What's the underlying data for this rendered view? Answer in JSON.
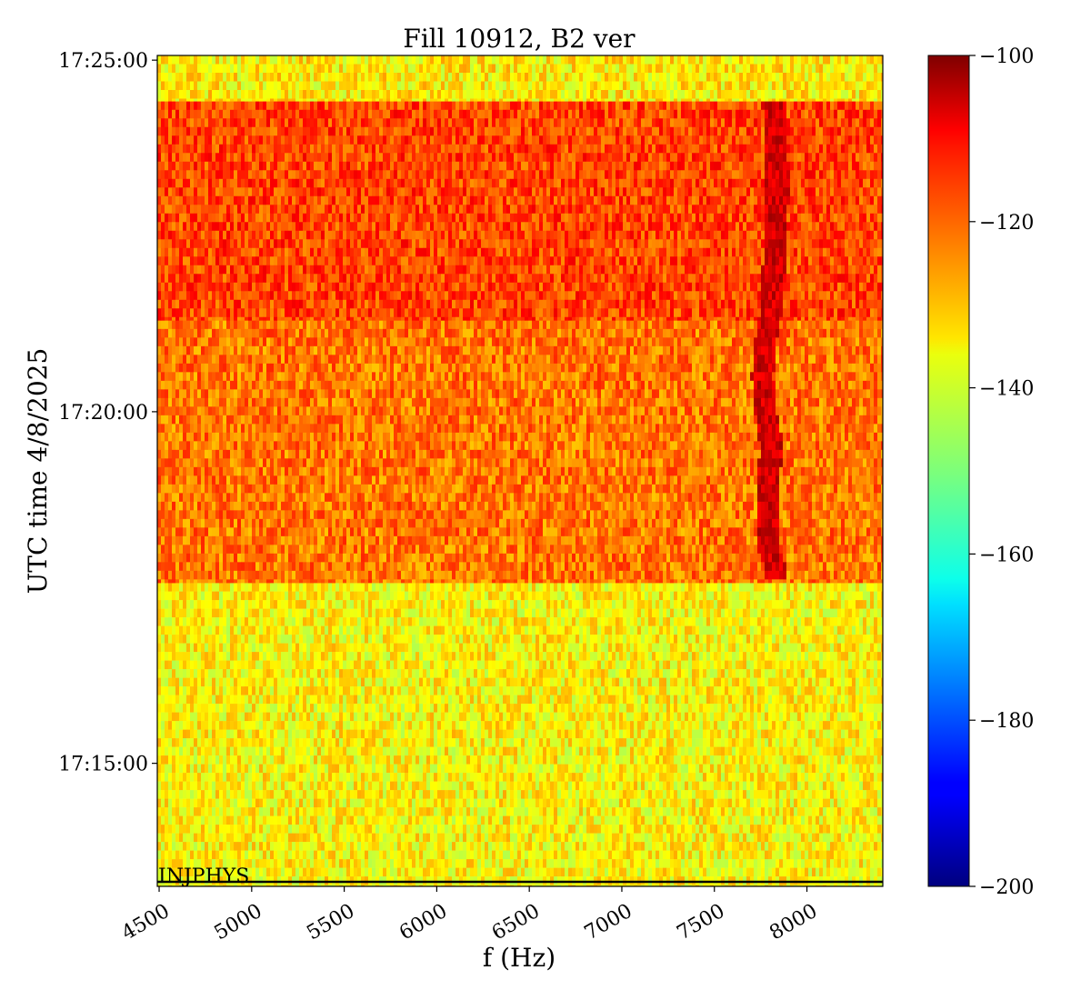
{
  "chart_data": {
    "type": "heatmap",
    "title": "Fill 10912, B2 ver",
    "xlabel": "f (Hz)",
    "ylabel": "UTC time 4/8/2025",
    "xlim": [
      4490,
      8410
    ],
    "x_ticks": [
      4500,
      5000,
      5500,
      6000,
      6500,
      7000,
      7500,
      8000
    ],
    "x_tick_labels": [
      "4500",
      "5000",
      "5500",
      "6000",
      "6500",
      "7000",
      "7500",
      "8000"
    ],
    "ylim_seconds_after_1700": [
      795,
      1504
    ],
    "y_ticks_seconds_after_1700": [
      900,
      1200,
      1500
    ],
    "y_tick_labels": [
      "17:15:00",
      "17:20:00",
      "17:25:00"
    ],
    "colorbar": {
      "colormap": "jet",
      "range": [
        -200,
        -100
      ],
      "ticks": [
        -100,
        -120,
        -140,
        -160,
        -180,
        -200
      ],
      "tick_labels": [
        "−100",
        "−120",
        "−140",
        "−160",
        "−180",
        "−200"
      ]
    },
    "regions": [
      {
        "t_start": 795,
        "t_end": 1054,
        "mean_level": -137,
        "spread": 5
      },
      {
        "t_start": 1054,
        "t_end": 1278,
        "mean_level": -124,
        "spread": 5
      },
      {
        "t_start": 1278,
        "t_end": 1465,
        "mean_level": -119,
        "spread": 5
      },
      {
        "t_start": 1465,
        "t_end": 1504,
        "mean_level": -136,
        "spread": 5
      }
    ],
    "line_feature": {
      "description_freq_hz": [
        [
          1058,
          7840
        ],
        [
          1080,
          7800
        ],
        [
          1110,
          7790
        ],
        [
          1140,
          7790
        ],
        [
          1170,
          7810
        ],
        [
          1200,
          7780
        ],
        [
          1230,
          7760
        ],
        [
          1260,
          7780
        ],
        [
          1290,
          7810
        ],
        [
          1320,
          7820
        ],
        [
          1350,
          7830
        ],
        [
          1380,
          7840
        ],
        [
          1410,
          7840
        ],
        [
          1440,
          7830
        ],
        [
          1462,
          7820
        ]
      ],
      "level": -103
    },
    "annotation": {
      "text": "INJPHYS",
      "t": 801
    }
  },
  "colors": {
    "frame": "#000000",
    "background": "#ffffff"
  }
}
